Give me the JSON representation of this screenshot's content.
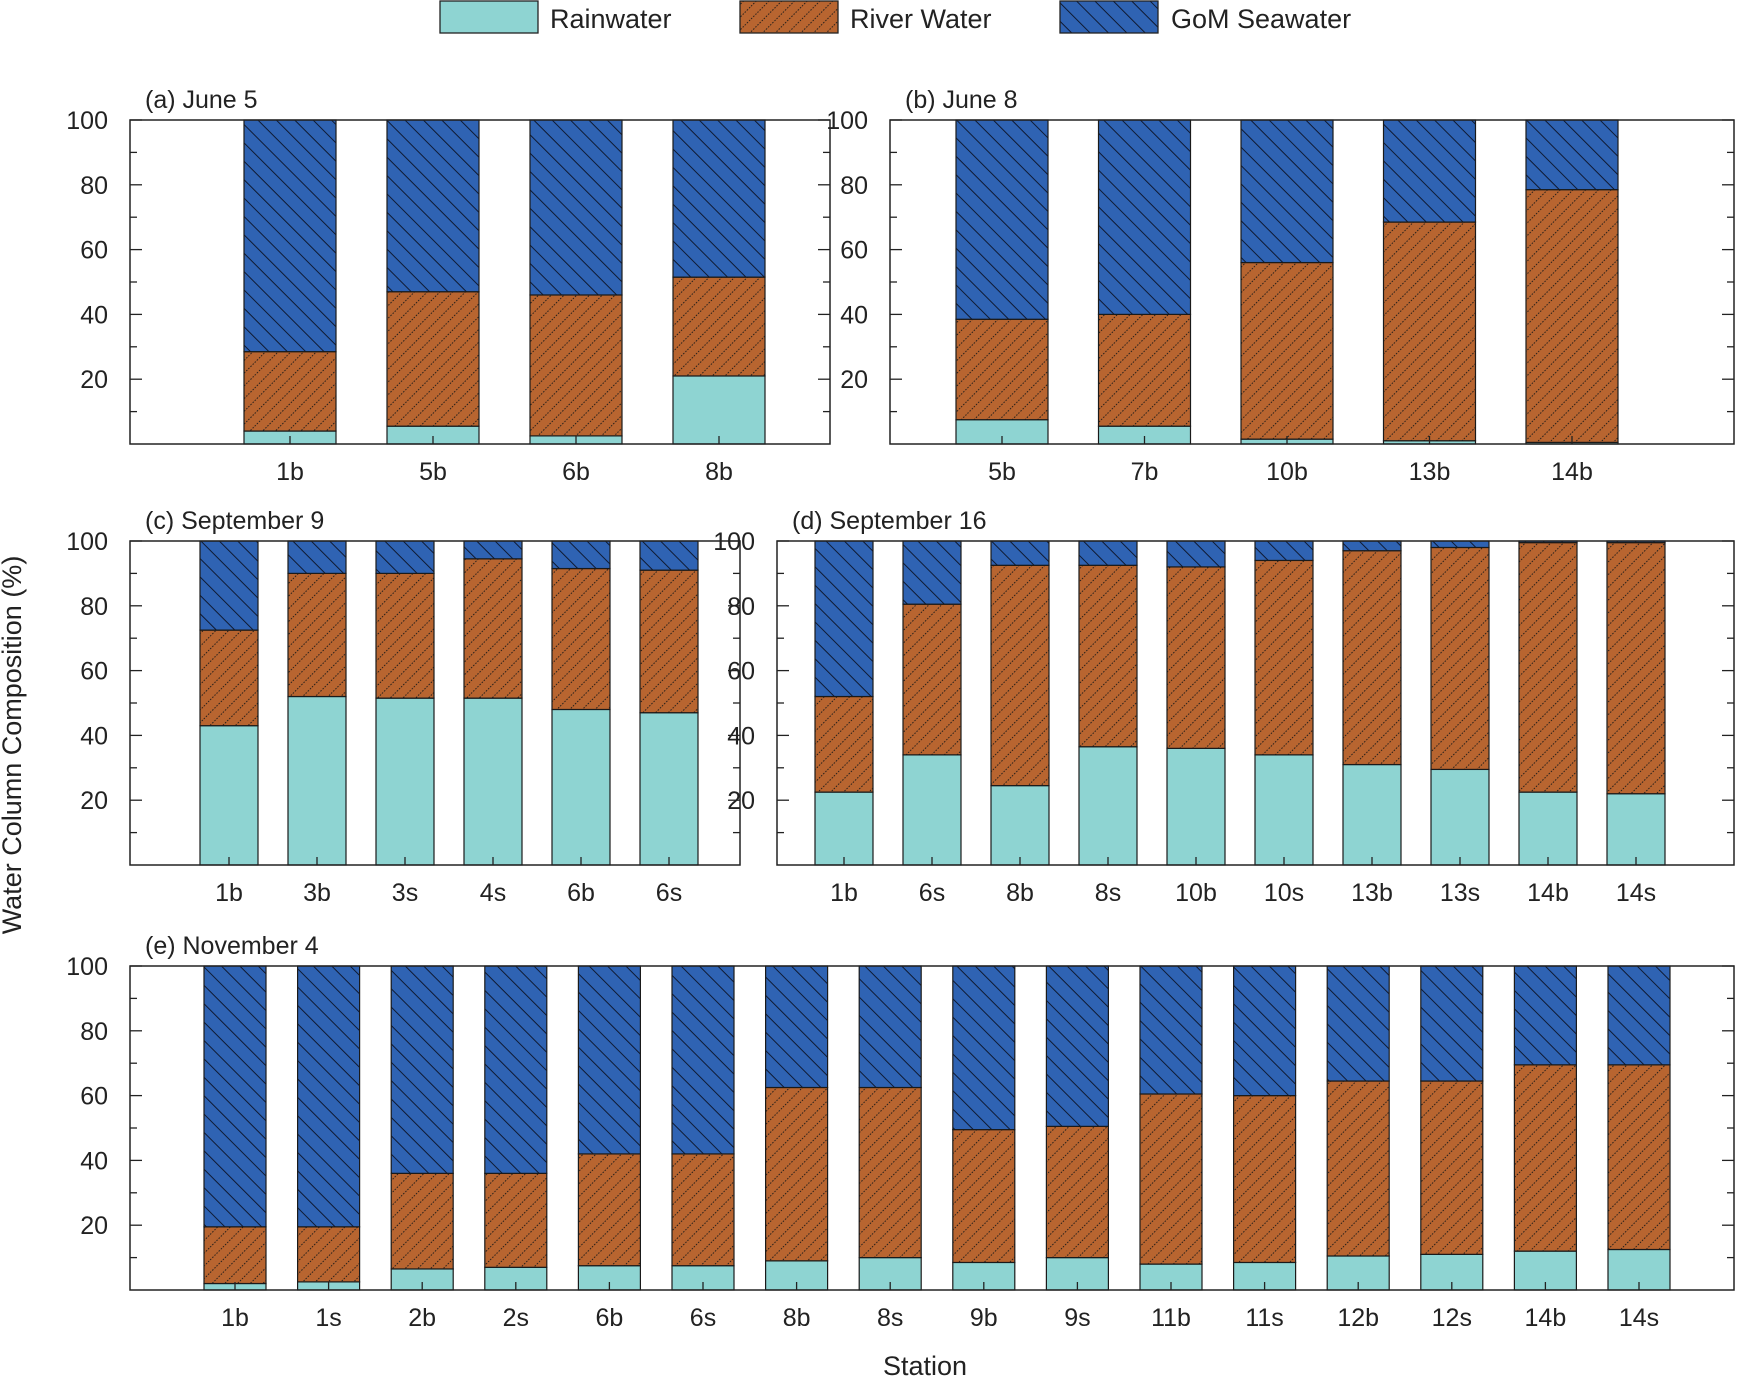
{
  "colors": {
    "rain": "#8ed4d2",
    "river": "#b86530",
    "gom": "#2f63b3"
  },
  "legend": {
    "rain": "Rainwater",
    "river": "River Water",
    "gom": "GoM Seawater"
  },
  "chart_data": {
    "type": "bar",
    "stacked": true,
    "ylabel": "Water Column Composition (%)",
    "xlabel": "Station",
    "ylim": [
      0,
      100
    ],
    "yticks": [
      20,
      40,
      60,
      80,
      100
    ],
    "panels": [
      {
        "title": "(a) June 5",
        "categories": [
          "1b",
          "5b",
          "6b",
          "8b"
        ],
        "series": [
          {
            "name": "Rainwater",
            "values": [
              4,
              5.5,
              2.5,
              21
            ]
          },
          {
            "name": "River Water",
            "values": [
              24.5,
              41.5,
              43.5,
              30.5
            ]
          },
          {
            "name": "GoM Seawater",
            "values": [
              71.5,
              53,
              54,
              48.5
            ]
          }
        ]
      },
      {
        "title": "(b) June 8",
        "categories": [
          "5b",
          "7b",
          "10b",
          "13b",
          "14b"
        ],
        "series": [
          {
            "name": "Rainwater",
            "values": [
              7.5,
              5.5,
              1.5,
              1,
              0.5
            ]
          },
          {
            "name": "River Water",
            "values": [
              31,
              34.5,
              54.5,
              67.5,
              78
            ]
          },
          {
            "name": "GoM Seawater",
            "values": [
              61.5,
              60,
              44,
              31.5,
              21.5
            ]
          }
        ]
      },
      {
        "title": "(c) September 9",
        "categories": [
          "1b",
          "3b",
          "3s",
          "4s",
          "6b",
          "6s"
        ],
        "series": [
          {
            "name": "Rainwater",
            "values": [
              43,
              52,
              51.5,
              51.5,
              48,
              47
            ]
          },
          {
            "name": "River Water",
            "values": [
              29.5,
              38,
              38.5,
              43,
              43.5,
              44
            ]
          },
          {
            "name": "GoM Seawater",
            "values": [
              27.5,
              10,
              10,
              5.5,
              8.5,
              9
            ]
          }
        ]
      },
      {
        "title": "(d) September 16",
        "categories": [
          "1b",
          "6s",
          "8b",
          "8s",
          "10b",
          "10s",
          "13b",
          "13s",
          "14b",
          "14s"
        ],
        "series": [
          {
            "name": "Rainwater",
            "values": [
              22.5,
              34,
              24.5,
              36.5,
              36,
              34,
              31,
              29.5,
              22.5,
              22
            ]
          },
          {
            "name": "River Water",
            "values": [
              29.5,
              46.5,
              68,
              56,
              56,
              60,
              66,
              68.5,
              77,
              77.5
            ]
          },
          {
            "name": "GoM Seawater",
            "values": [
              48,
              19.5,
              7.5,
              7.5,
              8,
              6,
              3,
              2,
              0.5,
              0.5
            ]
          }
        ]
      },
      {
        "title": "(e) November 4",
        "categories": [
          "1b",
          "1s",
          "2b",
          "2s",
          "6b",
          "6s",
          "8b",
          "8s",
          "9b",
          "9s",
          "11b",
          "11s",
          "12b",
          "12s",
          "14b",
          "14s"
        ],
        "series": [
          {
            "name": "Rainwater",
            "values": [
              2,
              2.5,
              6.5,
              7,
              7.5,
              7.5,
              9,
              10,
              8.5,
              10,
              8,
              8.5,
              10.5,
              11,
              12,
              12.5
            ]
          },
          {
            "name": "River Water",
            "values": [
              17.5,
              17,
              29.5,
              29,
              34.5,
              34.5,
              53.5,
              52.5,
              41,
              40.5,
              52.5,
              51.5,
              54,
              53.5,
              57.5,
              57
            ]
          },
          {
            "name": "GoM Seawater",
            "values": [
              80.5,
              80.5,
              64,
              64,
              58,
              58,
              37.5,
              37.5,
              50.5,
              49.5,
              39.5,
              40,
              35.5,
              35.5,
              30.5,
              30.5
            ]
          }
        ]
      }
    ]
  }
}
